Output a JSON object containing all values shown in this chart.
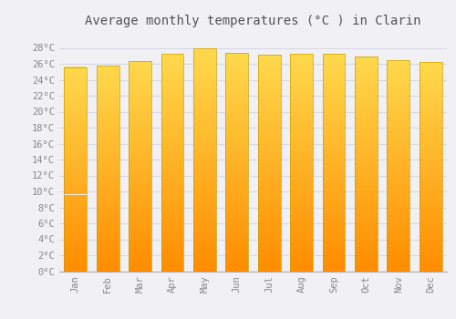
{
  "title": "Average monthly temperatures (°C ) in Clarin",
  "months": [
    "Jan",
    "Feb",
    "Mar",
    "Apr",
    "May",
    "Jun",
    "Jul",
    "Aug",
    "Sep",
    "Oct",
    "Nov",
    "Dec"
  ],
  "values": [
    25.6,
    25.8,
    26.4,
    27.3,
    27.9,
    27.4,
    27.1,
    27.3,
    27.3,
    26.9,
    26.5,
    26.2
  ],
  "ylim": [
    0,
    30
  ],
  "yticks": [
    0,
    2,
    4,
    6,
    8,
    10,
    12,
    14,
    16,
    18,
    20,
    22,
    24,
    26,
    28
  ],
  "bar_color_bottom": "#FF8C00",
  "bar_color_top": "#FFD966",
  "bar_edge_color": "#C8A000",
  "background_color": "#f0f0f5",
  "grid_color": "#d8d8e8",
  "title_fontsize": 10,
  "tick_fontsize": 7.5,
  "tick_color": "#888888",
  "font_family": "monospace",
  "bar_width": 0.7
}
